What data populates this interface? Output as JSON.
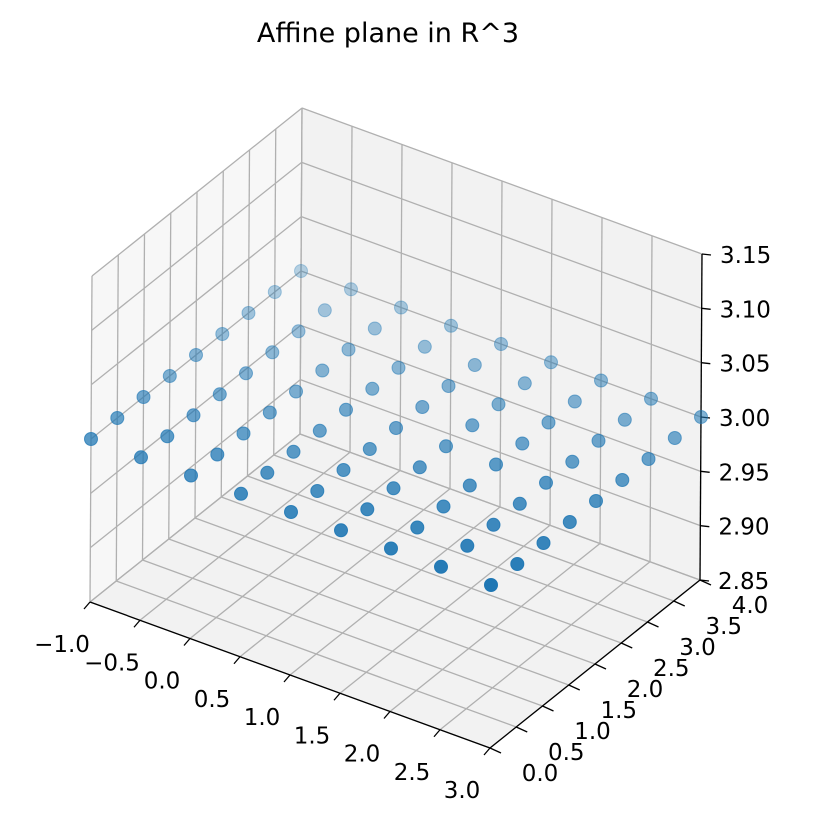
{
  "chart_data": {
    "type": "scatter",
    "projection": "3d",
    "title": "Affine plane in R^3",
    "xlabel": "",
    "ylabel": "",
    "zlabel": "",
    "grid": true,
    "color": "#1f77b4",
    "xlim": [
      -1.0,
      3.0
    ],
    "ylim": [
      0.0,
      4.0
    ],
    "zlim": [
      2.85,
      3.15
    ],
    "xticks": [
      "−1.0",
      "−0.5",
      "0.0",
      "0.5",
      "1.0",
      "1.5",
      "2.0",
      "2.5",
      "3.0"
    ],
    "xtick_values": [
      -1.0,
      -0.5,
      0.0,
      0.5,
      1.0,
      1.5,
      2.0,
      2.5,
      3.0
    ],
    "yticks": [
      "0.0",
      "0.5",
      "1.0",
      "1.5",
      "2.0",
      "2.5",
      "3.0",
      "3.5",
      "4.0"
    ],
    "ytick_values": [
      0.0,
      0.5,
      1.0,
      1.5,
      2.0,
      2.5,
      3.0,
      3.5,
      4.0
    ],
    "zticks": [
      "2.85",
      "2.90",
      "2.95",
      "3.00",
      "3.05",
      "3.10",
      "3.15"
    ],
    "ztick_values": [
      2.85,
      2.9,
      2.95,
      3.0,
      3.05,
      3.1,
      3.15
    ],
    "points_z_constant": 3.0,
    "points_x_values": [
      -1.0,
      -0.5,
      0.0,
      0.5,
      1.0,
      1.5,
      2.0,
      2.5,
      3.0
    ],
    "points_y_values": [
      0.0,
      0.5,
      1.0,
      1.5,
      2.0,
      2.5,
      3.0,
      3.5,
      4.0
    ]
  }
}
